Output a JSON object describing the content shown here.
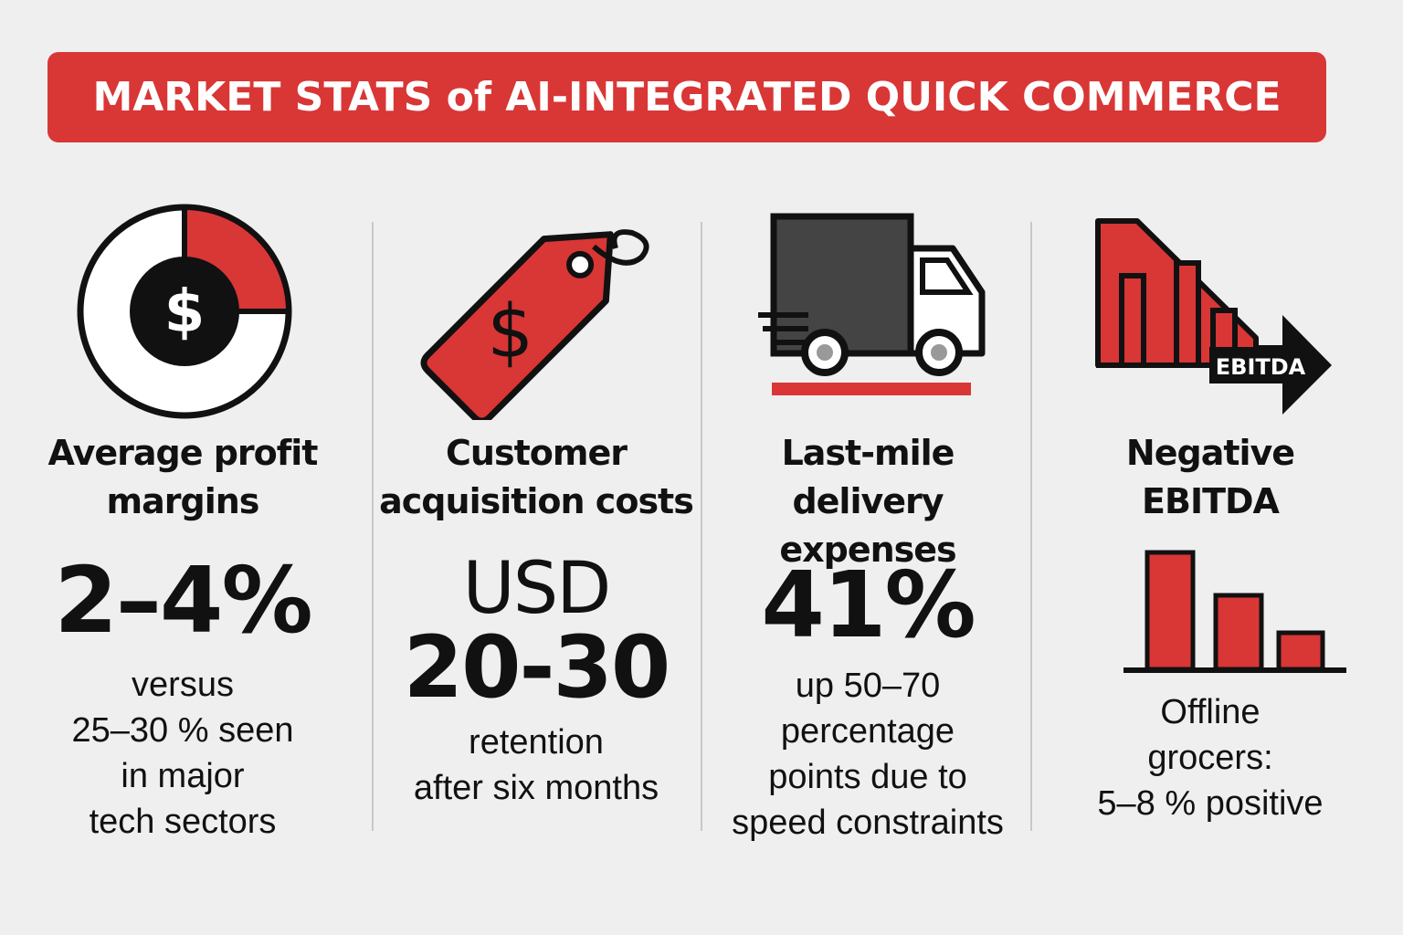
{
  "title": "MARKET STATS of AI-INTEGRATED QUICK COMMERCE",
  "colors": {
    "accent": "#d93636",
    "dark": "#111111",
    "background": "#efefef"
  },
  "stats": [
    {
      "icon": "dollar-pie-icon",
      "heading_line1": "Average profit",
      "heading_line2": "margins",
      "value": "2–4%",
      "detail": [
        "versus",
        "25–30 % seen",
        "in major",
        "tech sectors"
      ]
    },
    {
      "icon": "price-tag-icon",
      "heading_line1": "Customer",
      "heading_line2": "acquisition costs",
      "value_line1": "USD",
      "value_line2": "20-30",
      "detail": [
        "retention",
        "after six months"
      ]
    },
    {
      "icon": "delivery-truck-icon",
      "heading_line1": "Last-mile",
      "heading_line2": "delivery expenses",
      "value": "41%",
      "detail": [
        "up 50–70",
        "percentage",
        "points due to",
        "speed constraints"
      ]
    },
    {
      "icon": "declining-bar-chart-icon",
      "heading_line1": "Negative",
      "heading_line2": "EBITDA",
      "icon_label": "EBITDA",
      "detail": [
        "Offline",
        "grocers:",
        "5–8 % positive"
      ]
    }
  ]
}
